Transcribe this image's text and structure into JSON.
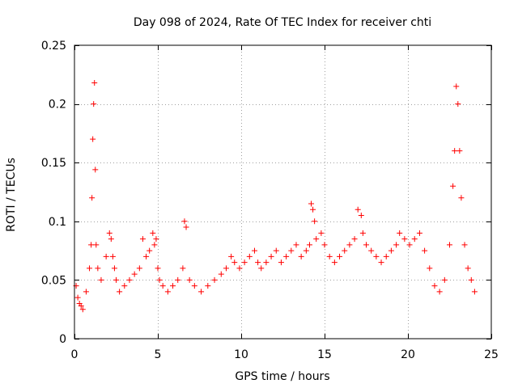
{
  "chart_data": {
    "type": "scatter",
    "title": "Day 098 of 2024, Rate Of TEC Index for receiver chti",
    "xlabel": "GPS time / hours",
    "ylabel": "ROTI / TECUs",
    "xlim": [
      0,
      25
    ],
    "ylim": [
      0,
      0.25
    ],
    "xticks": [
      0,
      5,
      10,
      15,
      20,
      25
    ],
    "xtick_labels": [
      "0",
      "5",
      "10",
      "15",
      "20",
      "25"
    ],
    "yticks": [
      0,
      0.05,
      0.1,
      0.15,
      0.2,
      0.25
    ],
    "ytick_labels": [
      "0",
      "0.05",
      "0.1",
      "0.15",
      "0.2",
      "0.25"
    ],
    "grid": true,
    "marker": "+",
    "color": "#ff0000",
    "series": [
      {
        "name": "ROTI",
        "x": [
          0.1,
          0.2,
          0.3,
          0.4,
          0.5,
          0.7,
          0.9,
          1.0,
          1.05,
          1.1,
          1.15,
          1.2,
          1.25,
          1.3,
          1.4,
          1.6,
          1.9,
          2.1,
          2.2,
          2.3,
          2.4,
          2.5,
          2.7,
          3.0,
          3.3,
          3.6,
          3.9,
          4.1,
          4.3,
          4.5,
          4.7,
          4.8,
          4.9,
          5.0,
          5.1,
          5.3,
          5.6,
          5.9,
          6.2,
          6.5,
          6.6,
          6.7,
          6.9,
          7.2,
          7.6,
          8.0,
          8.4,
          8.8,
          9.1,
          9.4,
          9.6,
          9.9,
          10.2,
          10.5,
          10.8,
          11.0,
          11.2,
          11.5,
          11.8,
          12.1,
          12.4,
          12.7,
          13.0,
          13.3,
          13.6,
          13.9,
          14.1,
          14.2,
          14.3,
          14.4,
          14.5,
          14.8,
          15.0,
          15.3,
          15.6,
          15.9,
          16.2,
          16.5,
          16.8,
          17.0,
          17.2,
          17.3,
          17.5,
          17.8,
          18.1,
          18.4,
          18.7,
          19.0,
          19.3,
          19.5,
          19.8,
          20.1,
          20.4,
          20.7,
          21.0,
          21.3,
          21.6,
          21.9,
          22.2,
          22.5,
          22.7,
          22.8,
          22.9,
          23.0,
          23.1,
          23.2,
          23.4,
          23.6,
          23.8,
          24.0
        ],
        "y": [
          0.045,
          0.035,
          0.03,
          0.028,
          0.025,
          0.04,
          0.06,
          0.08,
          0.12,
          0.17,
          0.2,
          0.218,
          0.144,
          0.08,
          0.06,
          0.05,
          0.07,
          0.09,
          0.085,
          0.07,
          0.06,
          0.05,
          0.04,
          0.045,
          0.05,
          0.055,
          0.06,
          0.085,
          0.07,
          0.075,
          0.09,
          0.08,
          0.085,
          0.06,
          0.05,
          0.045,
          0.04,
          0.045,
          0.05,
          0.06,
          0.1,
          0.095,
          0.05,
          0.045,
          0.04,
          0.045,
          0.05,
          0.055,
          0.06,
          0.07,
          0.065,
          0.06,
          0.065,
          0.07,
          0.075,
          0.065,
          0.06,
          0.065,
          0.07,
          0.075,
          0.065,
          0.07,
          0.075,
          0.08,
          0.07,
          0.075,
          0.08,
          0.115,
          0.11,
          0.1,
          0.085,
          0.09,
          0.08,
          0.07,
          0.065,
          0.07,
          0.075,
          0.08,
          0.085,
          0.11,
          0.105,
          0.09,
          0.08,
          0.075,
          0.07,
          0.065,
          0.07,
          0.075,
          0.08,
          0.09,
          0.085,
          0.08,
          0.085,
          0.09,
          0.075,
          0.06,
          0.045,
          0.04,
          0.05,
          0.08,
          0.13,
          0.16,
          0.215,
          0.2,
          0.16,
          0.12,
          0.08,
          0.06,
          0.05,
          0.04
        ]
      }
    ]
  }
}
